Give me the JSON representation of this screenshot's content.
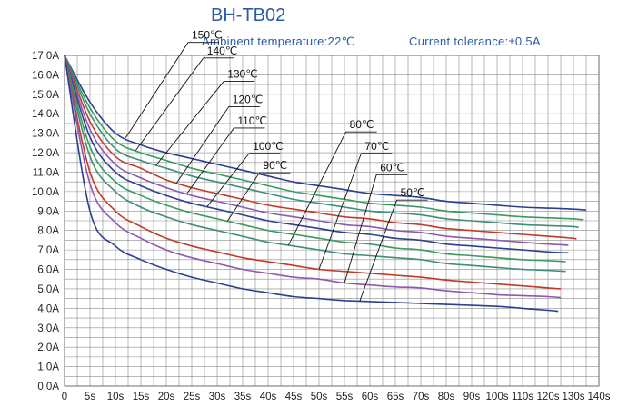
{
  "chart_data": {
    "type": "line",
    "title": "BH-TB02",
    "subtitle_ambient": "Ambinent temperature:22℃",
    "subtitle_tolerance": "Current tolerance:±0.5A",
    "xlabel": "",
    "ylabel": "",
    "xlim": [
      0,
      140
    ],
    "ylim": [
      0,
      17
    ],
    "grid": true,
    "x_ticks": [
      0,
      5,
      10,
      15,
      20,
      25,
      30,
      35,
      40,
      45,
      50,
      55,
      60,
      65,
      70,
      80,
      90,
      100,
      110,
      120,
      130,
      140
    ],
    "x_tick_labels": [
      "0",
      "5s",
      "10s",
      "15s",
      "20s",
      "25s",
      "30s",
      "35s",
      "40s",
      "45s",
      "50s",
      "55s",
      "60s",
      "65s",
      "70s",
      "80s",
      "90s",
      "100s",
      "110s",
      "120s",
      "130s",
      "140s"
    ],
    "y_ticks": [
      0,
      1,
      2,
      3,
      4,
      5,
      6,
      7,
      8,
      9,
      10,
      11,
      12,
      13,
      14,
      15,
      16,
      17
    ],
    "y_tick_labels": [
      "0.0A",
      "1.0A",
      "2.0A",
      "3.0A",
      "4.0A",
      "5.0A",
      "6.0A",
      "7.0A",
      "8.0A",
      "9.0A",
      "10.0A",
      "11.0A",
      "12.0A",
      "13.0A",
      "14.0A",
      "15.0A",
      "16.0A",
      "17.0A"
    ],
    "series": [
      {
        "name": "150℃",
        "color": "#2d3f8f",
        "x": [
          0,
          5,
          10,
          15,
          20,
          25,
          30,
          35,
          40,
          45,
          50,
          55,
          60,
          65,
          70,
          80,
          90,
          100,
          110,
          120,
          130,
          135
        ],
        "y": [
          17.0,
          14.6,
          13.0,
          12.4,
          12.0,
          11.7,
          11.4,
          11.1,
          10.8,
          10.5,
          10.3,
          10.1,
          9.9,
          9.8,
          9.7,
          9.5,
          9.4,
          9.3,
          9.2,
          9.15,
          9.1,
          9.05
        ]
      },
      {
        "name": "140℃",
        "color": "#3a9a62",
        "x": [
          0,
          5,
          10,
          15,
          20,
          25,
          30,
          35,
          40,
          45,
          50,
          55,
          60,
          65,
          70,
          80,
          90,
          100,
          110,
          120,
          130,
          134
        ],
        "y": [
          17.0,
          14.3,
          12.6,
          12.0,
          11.6,
          11.2,
          10.9,
          10.6,
          10.3,
          10.0,
          9.8,
          9.6,
          9.4,
          9.3,
          9.2,
          9.0,
          8.9,
          8.8,
          8.7,
          8.65,
          8.6,
          8.55
        ]
      },
      {
        "name": "130℃",
        "color": "#3f8e78",
        "x": [
          0,
          5,
          10,
          15,
          20,
          25,
          30,
          35,
          40,
          45,
          50,
          55,
          60,
          65,
          70,
          80,
          90,
          100,
          110,
          120,
          130,
          132
        ],
        "y": [
          17.0,
          14.0,
          12.2,
          11.6,
          11.2,
          10.8,
          10.5,
          10.2,
          9.9,
          9.6,
          9.4,
          9.2,
          9.0,
          8.9,
          8.8,
          8.6,
          8.5,
          8.4,
          8.3,
          8.25,
          8.2,
          8.15
        ]
      },
      {
        "name": "120℃",
        "color": "#c23a2a",
        "x": [
          0,
          5,
          10,
          15,
          20,
          25,
          30,
          35,
          40,
          45,
          50,
          55,
          60,
          65,
          70,
          80,
          90,
          100,
          110,
          120,
          130,
          131
        ],
        "y": [
          17.0,
          13.6,
          11.8,
          11.2,
          10.6,
          10.2,
          9.9,
          9.6,
          9.3,
          9.1,
          8.9,
          8.7,
          8.6,
          8.4,
          8.3,
          8.1,
          8.0,
          7.9,
          7.8,
          7.7,
          7.6,
          7.55
        ]
      },
      {
        "name": "110℃",
        "color": "#8e58b0",
        "x": [
          0,
          5,
          10,
          15,
          20,
          25,
          30,
          35,
          40,
          45,
          50,
          55,
          60,
          65,
          70,
          80,
          90,
          100,
          110,
          120,
          128
        ],
        "y": [
          17.0,
          13.2,
          11.4,
          10.7,
          10.2,
          9.8,
          9.5,
          9.2,
          8.9,
          8.7,
          8.5,
          8.3,
          8.2,
          8.0,
          7.9,
          7.7,
          7.6,
          7.5,
          7.4,
          7.3,
          7.25
        ]
      },
      {
        "name": "100℃",
        "color": "#2d3f8f",
        "x": [
          0,
          5,
          10,
          15,
          20,
          25,
          30,
          35,
          40,
          45,
          50,
          55,
          60,
          65,
          70,
          80,
          90,
          100,
          110,
          120,
          128
        ],
        "y": [
          17.0,
          12.8,
          11.0,
          10.3,
          9.8,
          9.4,
          9.1,
          8.8,
          8.5,
          8.3,
          8.1,
          7.9,
          7.8,
          7.6,
          7.5,
          7.3,
          7.2,
          7.1,
          7.0,
          6.9,
          6.85
        ]
      },
      {
        "name": "90℃",
        "color": "#3a9a62",
        "x": [
          0,
          5,
          10,
          15,
          20,
          25,
          30,
          35,
          40,
          45,
          50,
          55,
          60,
          65,
          70,
          80,
          90,
          100,
          110,
          120,
          127
        ],
        "y": [
          17.0,
          12.3,
          10.5,
          9.8,
          9.3,
          8.9,
          8.6,
          8.3,
          8.0,
          7.8,
          7.6,
          7.4,
          7.3,
          7.1,
          7.0,
          6.8,
          6.7,
          6.6,
          6.5,
          6.45,
          6.4
        ]
      },
      {
        "name": "80℃",
        "color": "#3f8e78",
        "x": [
          0,
          5,
          10,
          15,
          20,
          25,
          30,
          35,
          40,
          45,
          50,
          55,
          60,
          65,
          70,
          80,
          90,
          100,
          110,
          120,
          127
        ],
        "y": [
          17.0,
          11.8,
          10.0,
          9.2,
          8.7,
          8.3,
          8.0,
          7.7,
          7.4,
          7.2,
          7.0,
          6.8,
          6.7,
          6.6,
          6.5,
          6.3,
          6.2,
          6.1,
          6.0,
          5.95,
          5.9
        ]
      },
      {
        "name": "70℃",
        "color": "#c23a2a",
        "x": [
          0,
          5,
          10,
          15,
          20,
          25,
          30,
          35,
          40,
          45,
          50,
          55,
          60,
          65,
          70,
          80,
          90,
          100,
          110,
          120,
          125
        ],
        "y": [
          17.0,
          11.0,
          9.0,
          8.2,
          7.6,
          7.2,
          6.9,
          6.6,
          6.4,
          6.2,
          6.0,
          5.9,
          5.8,
          5.7,
          5.6,
          5.45,
          5.35,
          5.25,
          5.15,
          5.05,
          5.0
        ]
      },
      {
        "name": "60℃",
        "color": "#8e58b0",
        "x": [
          0,
          5,
          10,
          15,
          20,
          25,
          30,
          35,
          40,
          45,
          50,
          55,
          60,
          65,
          70,
          80,
          90,
          100,
          110,
          120,
          125
        ],
        "y": [
          17.0,
          10.4,
          8.4,
          7.6,
          7.0,
          6.6,
          6.3,
          6.0,
          5.8,
          5.6,
          5.5,
          5.3,
          5.2,
          5.1,
          5.05,
          4.9,
          4.8,
          4.7,
          4.65,
          4.6,
          4.55
        ]
      },
      {
        "name": "50℃",
        "color": "#2d3f8f",
        "x": [
          0,
          5,
          10,
          15,
          20,
          25,
          30,
          35,
          40,
          45,
          50,
          55,
          60,
          65,
          70,
          80,
          90,
          100,
          110,
          120,
          124
        ],
        "y": [
          17.0,
          9.0,
          7.2,
          6.5,
          6.0,
          5.6,
          5.3,
          5.0,
          4.8,
          4.6,
          4.5,
          4.4,
          4.35,
          4.3,
          4.25,
          4.2,
          4.15,
          4.1,
          4.0,
          3.9,
          3.85
        ]
      }
    ],
    "annotations": [
      {
        "label": "150℃",
        "series_index": 0,
        "point_x": 12,
        "text_x": 25,
        "text_y": 17.9
      },
      {
        "label": "140℃",
        "series_index": 1,
        "point_x": 14,
        "text_x": 28,
        "text_y": 17.1
      },
      {
        "label": "130℃",
        "series_index": 2,
        "point_x": 18,
        "text_x": 32,
        "text_y": 15.9
      },
      {
        "label": "120℃",
        "series_index": 3,
        "point_x": 22,
        "text_x": 33,
        "text_y": 14.6
      },
      {
        "label": "110℃",
        "series_index": 4,
        "point_x": 24,
        "text_x": 34,
        "text_y": 13.5
      },
      {
        "label": "100℃",
        "series_index": 5,
        "point_x": 28,
        "text_x": 37,
        "text_y": 12.2
      },
      {
        "label": "90℃",
        "series_index": 6,
        "point_x": 32,
        "text_x": 39,
        "text_y": 11.2
      },
      {
        "label": "80℃",
        "series_index": 7,
        "point_x": 44,
        "text_x": 56,
        "text_y": 13.3
      },
      {
        "label": "70℃",
        "series_index": 8,
        "point_x": 50,
        "text_x": 59,
        "text_y": 12.2
      },
      {
        "label": "60℃",
        "series_index": 9,
        "point_x": 55,
        "text_x": 62,
        "text_y": 11.1
      },
      {
        "label": "50℃",
        "series_index": 10,
        "point_x": 58,
        "text_x": 66,
        "text_y": 9.8
      }
    ]
  }
}
